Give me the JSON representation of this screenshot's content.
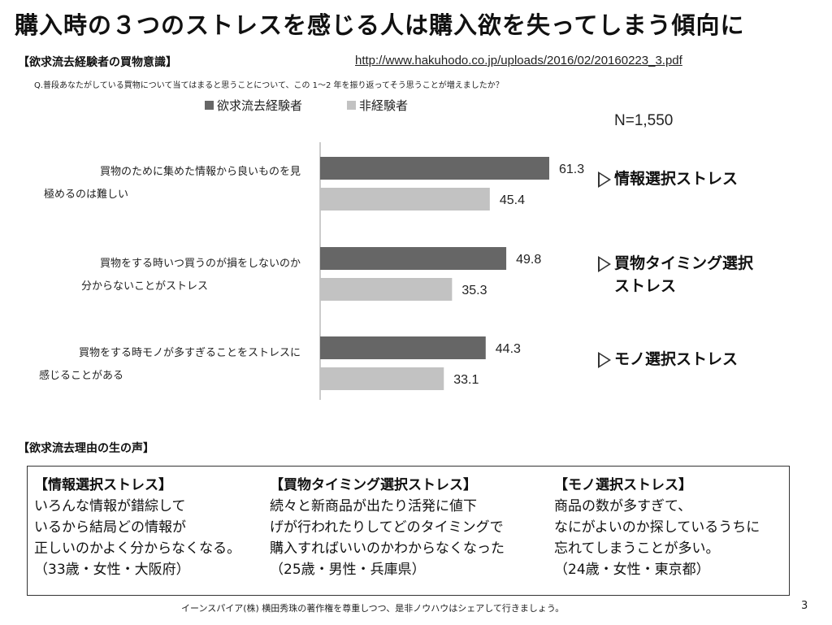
{
  "title": "購入時の３つのストレスを感じる人は購入欲を失ってしまう傾向に",
  "survey_label": "【欲求流去経験者の買物意識】",
  "source_url": "http://www.hakuhodo.co.jp/uploads/2016/02/20160223_3.pdf",
  "question": "Q.普段あなたがしている買物について当てはまると思うことについて、この 1～2 年を振り返ってそう思うことが増えましたか？",
  "n_label": "N=1,550",
  "chart_data": {
    "type": "bar",
    "orientation": "horizontal",
    "categories": [
      [
        "買物のために集めた情報から良いものを見",
        "極めるのは難しい"
      ],
      [
        "買物をする時いつ買うのが損をしないのか",
        "分からないことがストレス"
      ],
      [
        "買物をする時モノが多すぎることをストレスに",
        "感じることがある"
      ]
    ],
    "series": [
      {
        "name": "欲求流去経験者",
        "color": "#666666",
        "values": [
          61.3,
          49.8,
          44.3
        ]
      },
      {
        "name": "非経験者",
        "color": "#c2c2c2",
        "values": [
          45.4,
          35.3,
          33.1
        ]
      }
    ],
    "value_labels": [
      [
        "61.3",
        "45.4"
      ],
      [
        "49.8",
        "35.3"
      ],
      [
        "44.3",
        "33.1"
      ]
    ],
    "xlim": [
      0,
      100
    ],
    "annotations": [
      [
        "情報選択ストレス"
      ],
      [
        "買物タイミング選択",
        "ストレス"
      ],
      [
        "モノ選択ストレス"
      ]
    ]
  },
  "voices_label": "【欲求流去理由の生の声】",
  "voices": [
    {
      "heading": "【情報選択ストレス】",
      "lines": [
        "いろんな情報が錯綜して",
        "いるから結局どの情報が",
        "正しいのかよく分からなくなる。",
        "（33歳・女性・大阪府）"
      ]
    },
    {
      "heading": "【買物タイミング選択ストレス】",
      "lines": [
        "続々と新商品が出たり活発に値下",
        "げが行われたりしてどのタイミングで",
        "購入すればいいのかわからなくなった",
        "（25歳・男性・兵庫県）"
      ]
    },
    {
      "heading": "【モノ選択ストレス】",
      "lines": [
        "商品の数が多すぎて、",
        "なにがよいのか探しているうちに",
        "忘れてしまうことが多い。",
        "（24歳・女性・東京都）"
      ]
    }
  ],
  "footer": "イーンスパイア(株) 横田秀珠の著作権を尊重しつつ、是非ノウハウはシェアして行きましょう。",
  "page_number": "3"
}
